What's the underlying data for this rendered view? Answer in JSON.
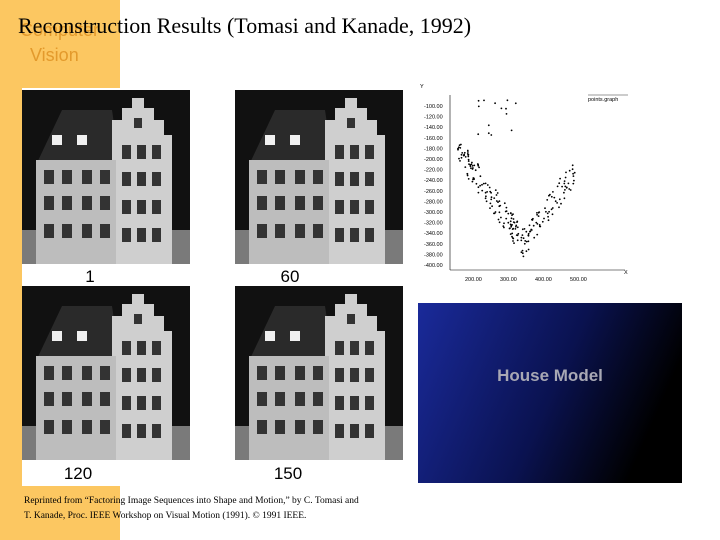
{
  "sidebar": {
    "brand": [
      "Computer",
      "Vision"
    ]
  },
  "title": "Reconstruction Results (Tomasi and Kanade, 1992)",
  "frames": [
    "1",
    "60",
    "120",
    "150"
  ],
  "plot": {
    "y_axis": "Y",
    "x_axis": "X",
    "legend": "points.graph",
    "y_labels": [
      "-100.00",
      "-120.00",
      "-140.00",
      "-160.00",
      "-180.00",
      "-200.00",
      "-220.00",
      "-240.00",
      "-260.00",
      "-280.00",
      "-300.00",
      "-320.00",
      "-340.00",
      "-360.00",
      "-380.00",
      "-400.00"
    ],
    "x_labels": [
      "200.00",
      "300.00",
      "400.00",
      "500.00"
    ]
  },
  "model_panel": "House Model",
  "caption": [
    "Reprinted from “Factoring Image Sequences into Shape and Motion,” by C. Tomasi and",
    "T. Kanade, Proc. IEEE Workshop on Visual Motion (1991). © 1991 IEEE."
  ]
}
